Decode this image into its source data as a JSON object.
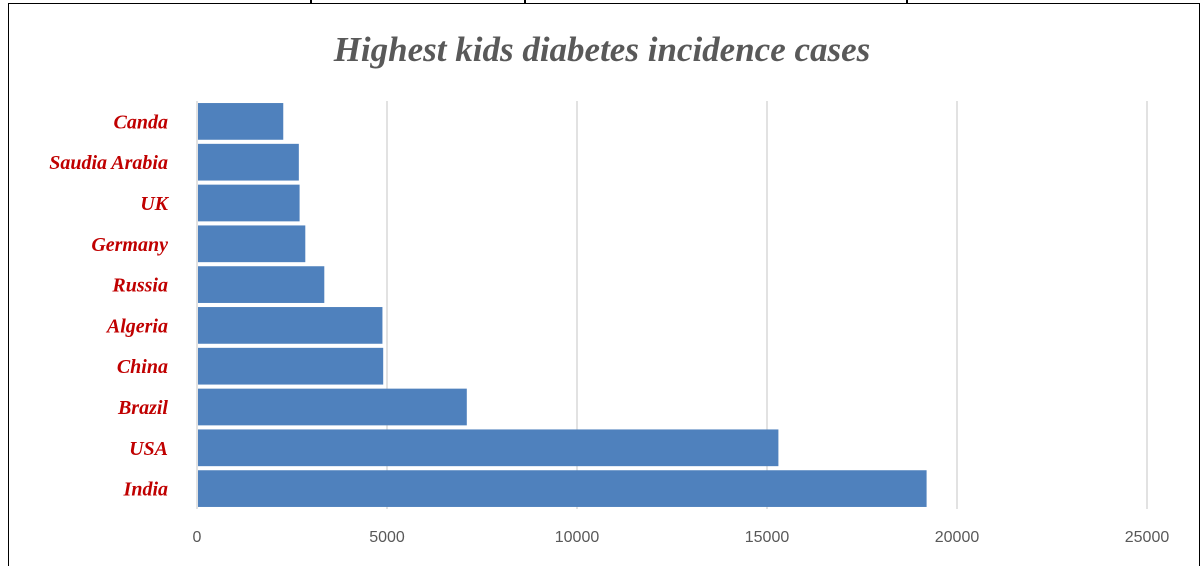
{
  "chart_data": {
    "type": "bar",
    "orientation": "horizontal",
    "title": "Highest kids diabetes incidence cases",
    "categories": [
      "India",
      "USA",
      "Brazil",
      "China",
      "Algeria",
      "Russia",
      "Germany",
      "UK",
      "Saudia Arabia",
      "Canda"
    ],
    "values": [
      19200,
      15300,
      7100,
      4900,
      4880,
      3350,
      2850,
      2700,
      2680,
      2270
    ],
    "xlim": [
      0,
      25000
    ],
    "xticks": [
      0,
      5000,
      10000,
      15000,
      20000,
      25000
    ],
    "xlabel": "",
    "ylabel": "",
    "grid": "vertical",
    "legend": "none",
    "bar_color": "#4f81bd",
    "label_color": "#c00000",
    "title_color": "#595959"
  }
}
